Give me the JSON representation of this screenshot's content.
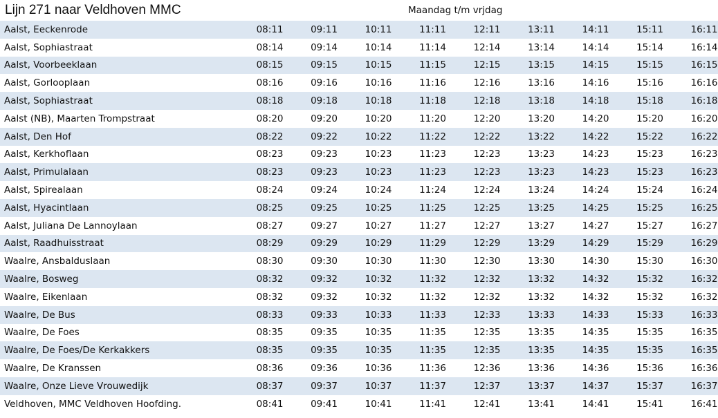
{
  "title": "Lijn 271 naar Veldhoven MMC",
  "days": "Maandag t/m vrjdag",
  "rows": [
    {
      "stop": "Aalst, Eeckenrode",
      "times": [
        "08:11",
        "09:11",
        "10:11",
        "11:11",
        "12:11",
        "13:11",
        "14:11",
        "15:11",
        "16:11"
      ]
    },
    {
      "stop": "Aalst, Sophiastraat",
      "times": [
        "08:14",
        "09:14",
        "10:14",
        "11:14",
        "12:14",
        "13:14",
        "14:14",
        "15:14",
        "16:14"
      ]
    },
    {
      "stop": "Aalst, Voorbeeklaan",
      "times": [
        "08:15",
        "09:15",
        "10:15",
        "11:15",
        "12:15",
        "13:15",
        "14:15",
        "15:15",
        "16:15"
      ]
    },
    {
      "stop": "Aalst, Gorlooplaan",
      "times": [
        "08:16",
        "09:16",
        "10:16",
        "11:16",
        "12:16",
        "13:16",
        "14:16",
        "15:16",
        "16:16"
      ]
    },
    {
      "stop": "Aalst, Sophiastraat",
      "times": [
        "08:18",
        "09:18",
        "10:18",
        "11:18",
        "12:18",
        "13:18",
        "14:18",
        "15:18",
        "16:18"
      ]
    },
    {
      "stop": "Aalst (NB), Maarten Trompstraat",
      "times": [
        "08:20",
        "09:20",
        "10:20",
        "11:20",
        "12:20",
        "13:20",
        "14:20",
        "15:20",
        "16:20"
      ]
    },
    {
      "stop": "Aalst, Den Hof",
      "times": [
        "08:22",
        "09:22",
        "10:22",
        "11:22",
        "12:22",
        "13:22",
        "14:22",
        "15:22",
        "16:22"
      ]
    },
    {
      "stop": "Aalst, Kerkhoflaan",
      "times": [
        "08:23",
        "09:23",
        "10:23",
        "11:23",
        "12:23",
        "13:23",
        "14:23",
        "15:23",
        "16:23"
      ]
    },
    {
      "stop": "Aalst, Primulalaan",
      "times": [
        "08:23",
        "09:23",
        "10:23",
        "11:23",
        "12:23",
        "13:23",
        "14:23",
        "15:23",
        "16:23"
      ]
    },
    {
      "stop": "Aalst, Spirealaan",
      "times": [
        "08:24",
        "09:24",
        "10:24",
        "11:24",
        "12:24",
        "13:24",
        "14:24",
        "15:24",
        "16:24"
      ]
    },
    {
      "stop": "Aalst, Hyacintlaan",
      "times": [
        "08:25",
        "09:25",
        "10:25",
        "11:25",
        "12:25",
        "13:25",
        "14:25",
        "15:25",
        "16:25"
      ]
    },
    {
      "stop": "Aalst, Juliana De Lannoylaan",
      "times": [
        "08:27",
        "09:27",
        "10:27",
        "11:27",
        "12:27",
        "13:27",
        "14:27",
        "15:27",
        "16:27"
      ]
    },
    {
      "stop": "Aalst, Raadhuisstraat",
      "times": [
        "08:29",
        "09:29",
        "10:29",
        "11:29",
        "12:29",
        "13:29",
        "14:29",
        "15:29",
        "16:29"
      ]
    },
    {
      "stop": "Waalre, Ansbalduslaan",
      "times": [
        "08:30",
        "09:30",
        "10:30",
        "11:30",
        "12:30",
        "13:30",
        "14:30",
        "15:30",
        "16:30"
      ]
    },
    {
      "stop": "Waalre, Bosweg",
      "times": [
        "08:32",
        "09:32",
        "10:32",
        "11:32",
        "12:32",
        "13:32",
        "14:32",
        "15:32",
        "16:32"
      ]
    },
    {
      "stop": "Waalre, Eikenlaan",
      "times": [
        "08:32",
        "09:32",
        "10:32",
        "11:32",
        "12:32",
        "13:32",
        "14:32",
        "15:32",
        "16:32"
      ]
    },
    {
      "stop": "Waalre, De Bus",
      "times": [
        "08:33",
        "09:33",
        "10:33",
        "11:33",
        "12:33",
        "13:33",
        "14:33",
        "15:33",
        "16:33"
      ]
    },
    {
      "stop": "Waalre, De Foes",
      "times": [
        "08:35",
        "09:35",
        "10:35",
        "11:35",
        "12:35",
        "13:35",
        "14:35",
        "15:35",
        "16:35"
      ]
    },
    {
      "stop": "Waalre, De Foes/De Kerkakkers",
      "times": [
        "08:35",
        "09:35",
        "10:35",
        "11:35",
        "12:35",
        "13:35",
        "14:35",
        "15:35",
        "16:35"
      ]
    },
    {
      "stop": "Waalre, De Kranssen",
      "times": [
        "08:36",
        "09:36",
        "10:36",
        "11:36",
        "12:36",
        "13:36",
        "14:36",
        "15:36",
        "16:36"
      ]
    },
    {
      "stop": "Waalre, Onze Lieve Vrouwedijk",
      "times": [
        "08:37",
        "09:37",
        "10:37",
        "11:37",
        "12:37",
        "13:37",
        "14:37",
        "15:37",
        "16:37"
      ]
    },
    {
      "stop": "Veldhoven, MMC Veldhoven Hoofding.",
      "times": [
        "08:41",
        "09:41",
        "10:41",
        "11:41",
        "12:41",
        "13:41",
        "14:41",
        "15:41",
        "16:41"
      ]
    }
  ]
}
